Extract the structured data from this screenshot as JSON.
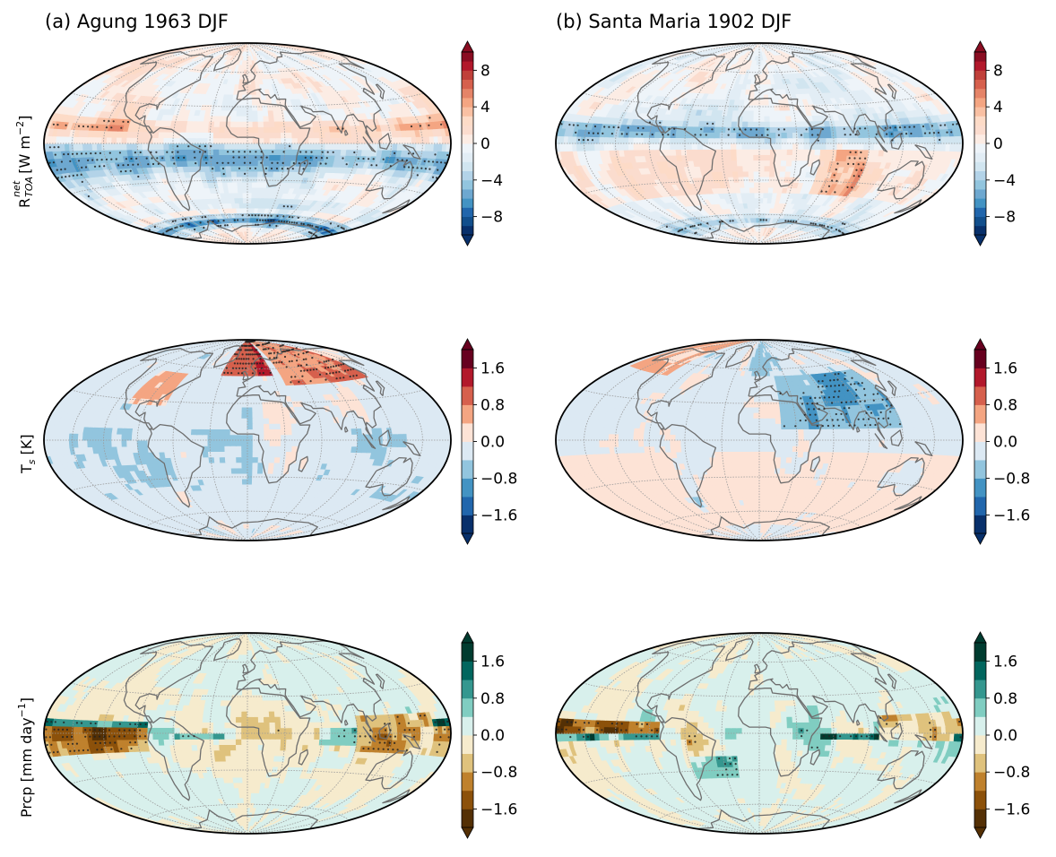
{
  "panels": {
    "a_title": "(a) Agung 1963 DJF",
    "b_title": "(b) Santa Maria 1902 DJF"
  },
  "rows": [
    {
      "key": "rtoa",
      "label_main": "R",
      "label_sup": "net",
      "label_sub": "TOA",
      "label_rest": " [W m",
      "label_exp": "−2",
      "label_end": "]"
    },
    {
      "key": "ts",
      "label_main": "T",
      "label_sub": "s",
      "label_rest": " [K]"
    },
    {
      "key": "prcp",
      "label_main": "Prcp [mm day",
      "label_exp": "−1",
      "label_end": "]"
    }
  ],
  "chart_data": [
    {
      "type": "heatmap",
      "projection": "Hammer/Mollweide global",
      "panel": "a",
      "title": "(a) Agung 1963 DJF",
      "variable": "R_TOA^net",
      "units": "W m−2",
      "colormap": "RdBu_r",
      "levels": [
        -10,
        -9,
        -8,
        -7,
        -6,
        -5,
        -4,
        -3,
        -2,
        -1,
        0,
        1,
        2,
        3,
        4,
        5,
        6,
        7,
        8,
        9,
        10
      ],
      "colorbar_ticks": [
        "8",
        "4",
        "0",
        "−4",
        "−8"
      ],
      "colorbar_tick_values": [
        8,
        4,
        0,
        -4,
        -8
      ],
      "extend": "both",
      "stippling": true
    },
    {
      "type": "heatmap",
      "projection": "Hammer/Mollweide global",
      "panel": "b",
      "title": "(b) Santa Maria 1902 DJF",
      "variable": "R_TOA^net",
      "units": "W m−2",
      "colormap": "RdBu_r",
      "levels": [
        -10,
        -9,
        -8,
        -7,
        -6,
        -5,
        -4,
        -3,
        -2,
        -1,
        0,
        1,
        2,
        3,
        4,
        5,
        6,
        7,
        8,
        9,
        10
      ],
      "colorbar_ticks": [
        "8",
        "4",
        "0",
        "−4",
        "−8"
      ],
      "colorbar_tick_values": [
        8,
        4,
        0,
        -4,
        -8
      ],
      "extend": "both",
      "stippling": true
    },
    {
      "type": "heatmap",
      "panel": "a",
      "variable": "T_s",
      "units": "K",
      "colormap": "RdBu_r",
      "levels": [
        -2.0,
        -1.6,
        -1.2,
        -0.8,
        -0.4,
        0.0,
        0.4,
        0.8,
        1.2,
        1.6,
        2.0
      ],
      "colorbar_ticks": [
        "1.6",
        "0.8",
        "0.0",
        "−0.8",
        "−1.6"
      ],
      "colorbar_tick_values": [
        1.6,
        0.8,
        0.0,
        -0.8,
        -1.6
      ],
      "extend": "both",
      "stippling": true
    },
    {
      "type": "heatmap",
      "panel": "b",
      "variable": "T_s",
      "units": "K",
      "colormap": "RdBu_r",
      "levels": [
        -2.0,
        -1.6,
        -1.2,
        -0.8,
        -0.4,
        0.0,
        0.4,
        0.8,
        1.2,
        1.6,
        2.0
      ],
      "colorbar_ticks": [
        "1.6",
        "0.8",
        "0.0",
        "−0.8",
        "−1.6"
      ],
      "colorbar_tick_values": [
        1.6,
        0.8,
        0.0,
        -0.8,
        -1.6
      ],
      "extend": "both",
      "stippling": true
    },
    {
      "type": "heatmap",
      "panel": "a",
      "variable": "Prcp",
      "units": "mm day−1",
      "colormap": "BrBG",
      "levels": [
        -2.0,
        -1.6,
        -1.2,
        -0.8,
        -0.4,
        0.0,
        0.4,
        0.8,
        1.2,
        1.6,
        2.0
      ],
      "colorbar_ticks": [
        "1.6",
        "0.8",
        "0.0",
        "−0.8",
        "−1.6"
      ],
      "colorbar_tick_values": [
        1.6,
        0.8,
        0.0,
        -0.8,
        -1.6
      ],
      "extend": "both",
      "stippling": true
    },
    {
      "type": "heatmap",
      "panel": "b",
      "variable": "Prcp",
      "units": "mm day−1",
      "colormap": "BrBG",
      "levels": [
        -2.0,
        -1.6,
        -1.2,
        -0.8,
        -0.4,
        0.0,
        0.4,
        0.8,
        1.2,
        1.6,
        2.0
      ],
      "colorbar_ticks": [
        "1.6",
        "0.8",
        "0.0",
        "−0.8",
        "−1.6"
      ],
      "colorbar_tick_values": [
        1.6,
        0.8,
        0.0,
        -0.8,
        -1.6
      ],
      "extend": "both",
      "stippling": true
    }
  ],
  "colors": {
    "rdbu": [
      "#08306b",
      "#124f8c",
      "#2166ac",
      "#4393c3",
      "#6ea8d0",
      "#92c5de",
      "#b3d3e8",
      "#d1e5f0",
      "#e2edf5",
      "#eef4f9",
      "#fcece4",
      "#fbdcce",
      "#fddbc7",
      "#f9c0a3",
      "#f4a582",
      "#e58468",
      "#d6604d",
      "#c0403a",
      "#b2182b",
      "#8a0d22"
    ],
    "rdbu10": [
      "#08306b",
      "#2166ac",
      "#4393c3",
      "#92c5de",
      "#dce9f3",
      "#fde3d6",
      "#f4a582",
      "#d6604d",
      "#b2182b",
      "#67001f"
    ],
    "brbg10": [
      "#543005",
      "#8c510a",
      "#bf812d",
      "#dfc27d",
      "#f6ebcd",
      "#d8f0ec",
      "#80cdc1",
      "#35978f",
      "#01665e",
      "#003c30"
    ],
    "coast": "#6e6e6e",
    "grid": "#9a9a9a",
    "ocean_rdbu": "#e4eef6",
    "ocean_brbg": "#f4f0df"
  }
}
